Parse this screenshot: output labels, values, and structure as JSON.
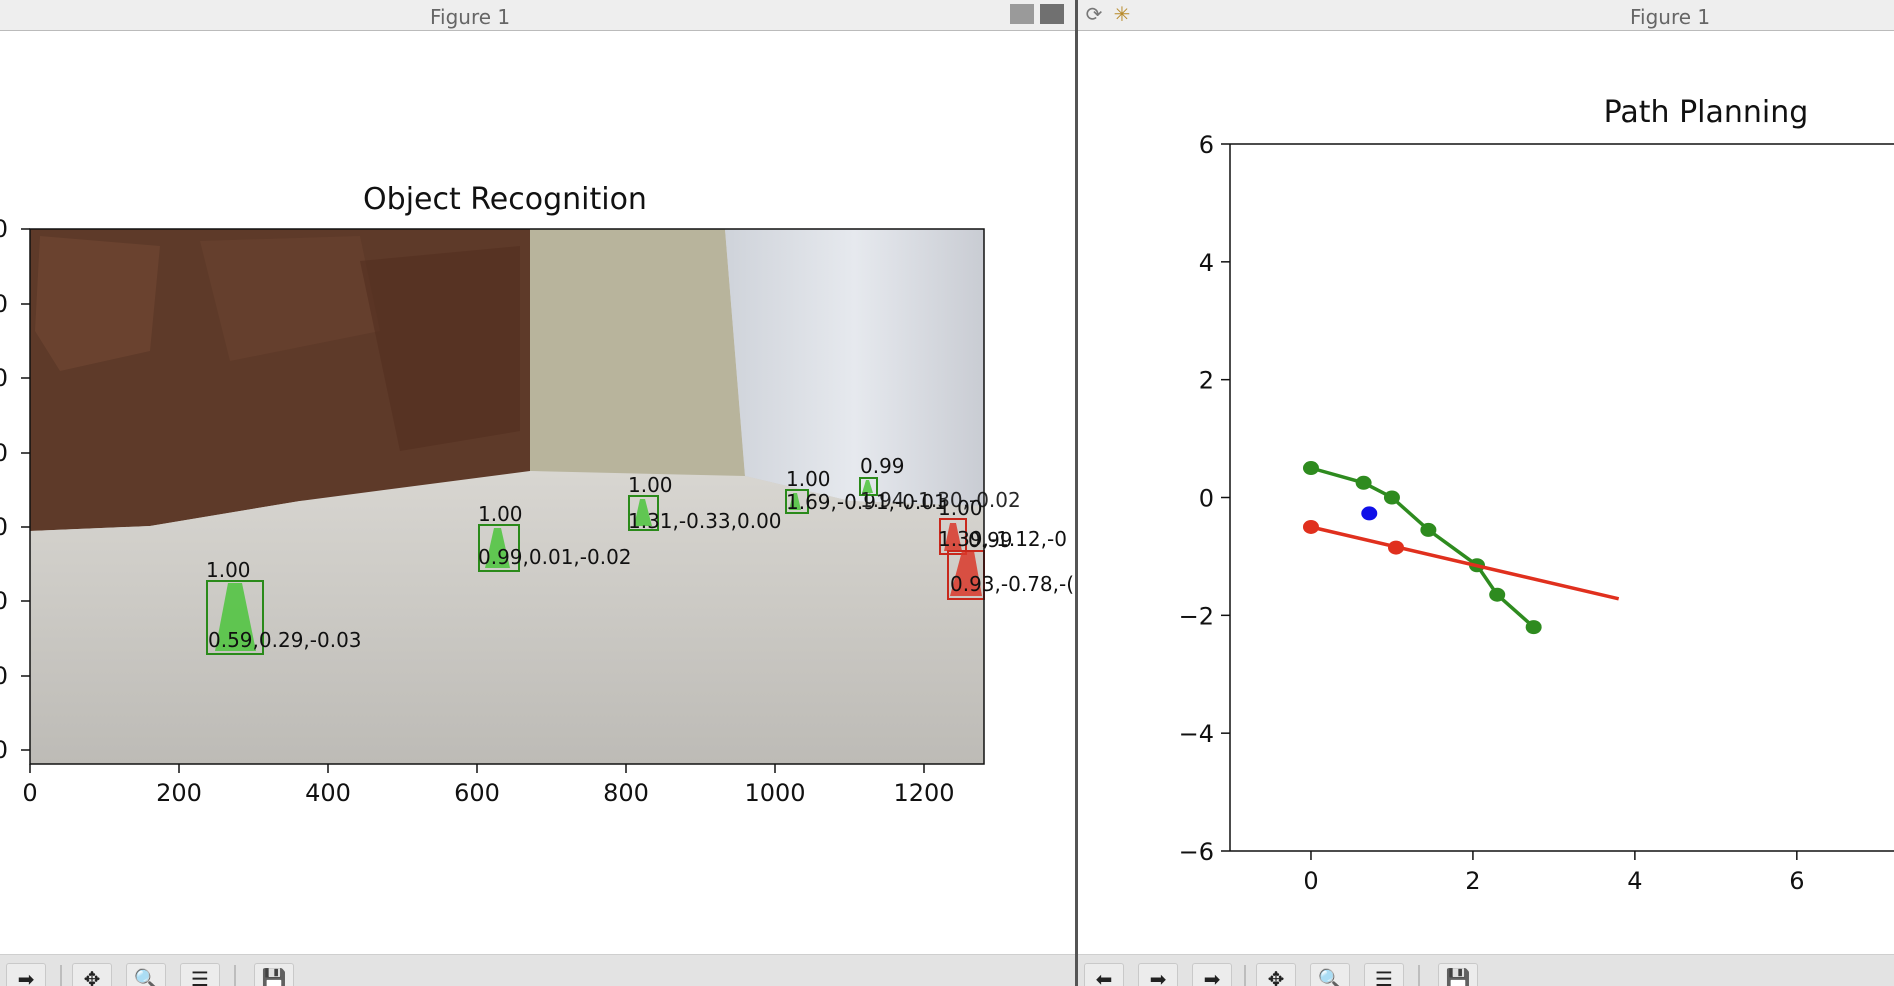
{
  "left_window": {
    "title": "Figure 1",
    "chart_title": "Object Recognition",
    "x_ticks": [
      "0",
      "200",
      "400",
      "600",
      "800",
      "1000",
      "1200"
    ],
    "y_ticks": [
      "0",
      "0",
      "0",
      "0",
      "0",
      "0",
      "0",
      "0"
    ],
    "detections": [
      {
        "score": "1.00",
        "coords": "0.59,0.29,-0.03",
        "color": "green"
      },
      {
        "score": "1.00",
        "coords": "0.99,0.01,-0.02",
        "color": "green"
      },
      {
        "score": "1.00",
        "coords": "1.31,-0.33,0.00",
        "color": "green"
      },
      {
        "score": "1.00",
        "coords": "1.69,-0.91,-0.01",
        "color": "green"
      },
      {
        "score": "0.99",
        "coords": "1.94,-1.30,-0.02",
        "color": "green"
      },
      {
        "score": "1.00",
        "coords": "1.39,-1.12,-0",
        "color": "red"
      },
      {
        "score": "0.99",
        "coords": "0.93,-0.78,-(",
        "color": "red"
      }
    ],
    "toolbar_icons": [
      "forward-icon",
      "pan-icon",
      "zoom-icon",
      "subplots-icon",
      "save-icon"
    ]
  },
  "right_window": {
    "title": "Figure 1",
    "toolbar_icons": [
      "back-icon",
      "forward-icon",
      "pan-icon",
      "zoom-icon",
      "subplots-icon",
      "save-icon"
    ]
  },
  "chart_data": [
    {
      "type": "scatter",
      "title": "Path Planning",
      "xlabel": "",
      "ylabel": "",
      "xlim": [
        -1,
        7.2
      ],
      "ylim": [
        -6,
        6
      ],
      "x_ticks": [
        "0",
        "2",
        "4",
        "6"
      ],
      "y_ticks": [
        "−6",
        "−4",
        "−2",
        "0",
        "2",
        "4",
        "6"
      ],
      "grid": false,
      "series": [
        {
          "color": "#2e8b1f",
          "mode": "line+markers",
          "x": [
            0,
            0.65,
            1.0,
            1.45,
            2.05,
            2.3,
            2.75
          ],
          "y": [
            0.5,
            0.25,
            0.0,
            -0.55,
            -1.15,
            -1.65,
            -2.2
          ]
        },
        {
          "color": "#e0301e",
          "mode": "markers",
          "x": [
            0,
            1.05
          ],
          "y": [
            -0.5,
            -0.85
          ]
        },
        {
          "color": "#e0301e",
          "mode": "line",
          "x": [
            0,
            3.8
          ],
          "y": [
            -0.5,
            -1.72
          ]
        },
        {
          "color": "#1010e8",
          "mode": "markers",
          "x": [
            0.72
          ],
          "y": [
            -0.27
          ]
        }
      ]
    }
  ]
}
